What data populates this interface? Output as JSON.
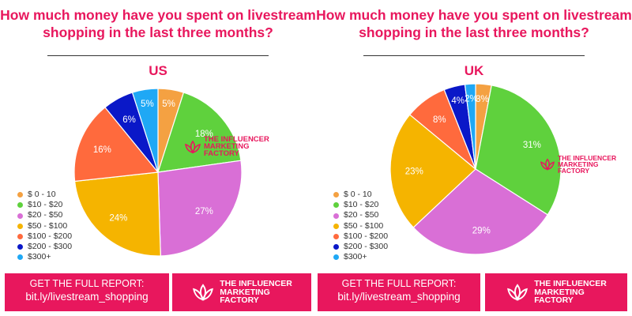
{
  "brand_color": "#e8175d",
  "brand_name": "THE INFLUENCER\nMARKETING\nFACTORY",
  "banner": {
    "cta": "GET THE FULL REPORT:",
    "url": "bit.ly/livestream_shopping"
  },
  "chart_data": [
    {
      "type": "pie",
      "title": "How much money have you spent on livestream shopping in the last three months?",
      "subtitle": "US",
      "legend_position": "bottom-left",
      "categories": [
        "$ 0 - 10",
        "$10 - $20",
        "$20 - $50",
        "$50 - $100",
        "$100 - $200",
        "$200 - $300",
        "$300+"
      ],
      "colors": [
        "#f4a142",
        "#5fd13d",
        "#d96fd6",
        "#f5b400",
        "#ff6a3d",
        "#0a18c8",
        "#1fa8f5"
      ],
      "values": [
        5,
        18,
        27,
        24,
        16,
        6,
        5
      ],
      "labels": [
        "5%",
        "18%",
        "27%",
        "24%",
        "16%",
        "6%",
        "5%"
      ]
    },
    {
      "type": "pie",
      "title": "How much money have you spent on livestream shopping in the last three months?",
      "subtitle": "UK",
      "legend_position": "bottom-left",
      "categories": [
        "$ 0 - 10",
        "$10 - $20",
        "$20 - $50",
        "$50 - $100",
        "$100 - $200",
        "$200 - $300",
        "$300+"
      ],
      "colors": [
        "#f4a142",
        "#5fd13d",
        "#d96fd6",
        "#f5b400",
        "#ff6a3d",
        "#0a18c8",
        "#1fa8f5"
      ],
      "values": [
        3,
        31,
        29,
        23,
        8,
        4,
        2
      ],
      "labels": [
        "3%",
        "31%",
        "29%",
        "23%",
        "8%",
        "4%",
        "2%"
      ]
    }
  ]
}
